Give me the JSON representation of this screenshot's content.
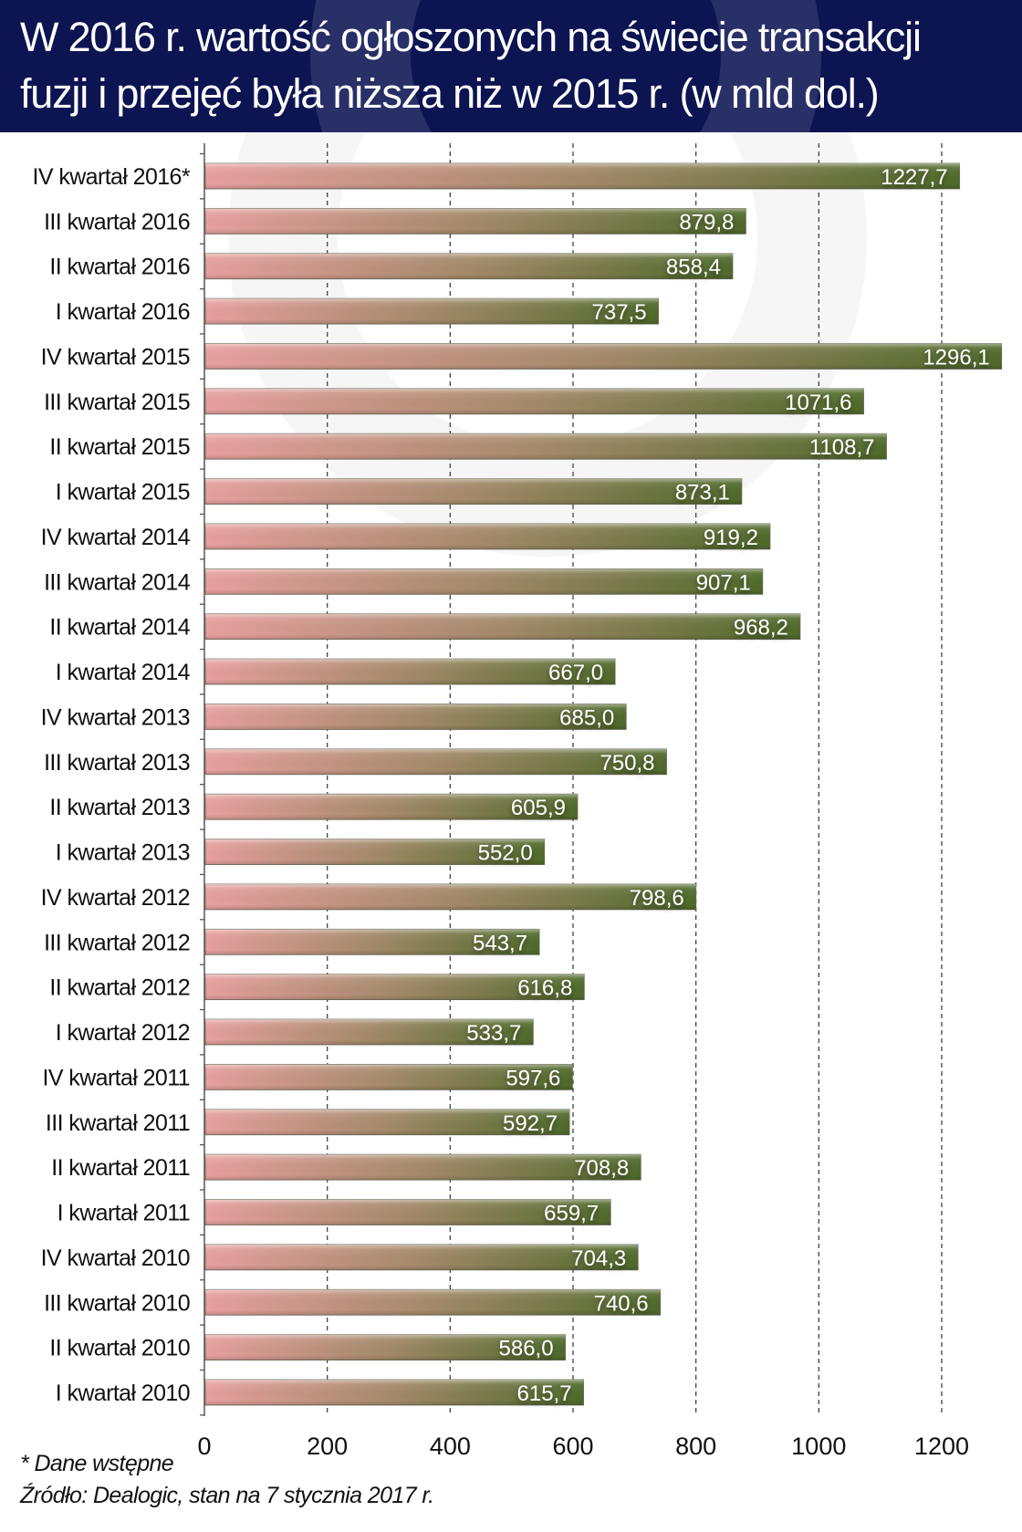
{
  "header": {
    "title_line1": "W 2016 r. wartość ogłoszonych na świecie transakcji",
    "title_line2": "fuzji i przejęć była niższa niż w 2015 r. (w mld dol.)"
  },
  "footer": {
    "note": "* Dane wstępne",
    "source": "Źródło: Dealogic, stan na 7 stycznia 2017 r."
  },
  "colors": {
    "header_bg": "#0c1452",
    "bar_start": "#e8a0a0",
    "bar_mid": "#a48a6a",
    "bar_end": "#4e6a2a",
    "label_text": "#ffffff"
  },
  "chart_data": {
    "type": "bar",
    "orientation": "horizontal",
    "title": "W 2016 r. wartość ogłoszonych na świecie transakcji fuzji i przejęć była niższa niż w 2015 r. (w mld dol.)",
    "xlabel": "",
    "ylabel": "",
    "xlim": [
      0,
      1300
    ],
    "xticks": [
      0,
      200,
      400,
      600,
      800,
      1000,
      1200
    ],
    "xtick_labels": [
      "0",
      "200",
      "400",
      "600",
      "800",
      "1000",
      "1200"
    ],
    "grid": "vertical-dashed",
    "categories": [
      "IV kwartał 2016*",
      "III kwartał 2016",
      "II kwartał 2016",
      "I kwartał 2016",
      "IV kwartał 2015",
      "III kwartał 2015",
      "II kwartał 2015",
      "I kwartał 2015",
      "IV kwartał 2014",
      "III kwartał 2014",
      "II kwartał 2014",
      "I kwartał 2014",
      "IV kwartał 2013",
      "III kwartał 2013",
      "II kwartał 2013",
      "I kwartał 2013",
      "IV kwartał 2012",
      "III kwartał 2012",
      "II kwartał 2012",
      "I kwartał 2012",
      "IV kwartał 2011",
      "III kwartał 2011",
      "II kwartał 2011",
      "I kwartał 2011",
      "IV kwartał 2010",
      "III kwartał 2010",
      "II kwartał 2010",
      "I kwartał 2010"
    ],
    "values": [
      1227.7,
      879.8,
      858.4,
      737.5,
      1296.1,
      1071.6,
      1108.7,
      873.1,
      919.2,
      907.1,
      968.2,
      667.0,
      685.0,
      750.8,
      605.9,
      552.0,
      798.6,
      543.7,
      616.8,
      533.7,
      597.6,
      592.7,
      708.8,
      659.7,
      704.3,
      740.6,
      586.0,
      615.7
    ],
    "value_labels": [
      "1227,7",
      "879,8",
      "858,4",
      "737,5",
      "1296,1",
      "1071,6",
      "1108,7",
      "873,1",
      "919,2",
      "907,1",
      "968,2",
      "667,0",
      "685,0",
      "750,8",
      "605,9",
      "552,0",
      "798,6",
      "543,7",
      "616,8",
      "533,7",
      "597,6",
      "592,7",
      "708,8",
      "659,7",
      "704,3",
      "740,6",
      "586,0",
      "615,7"
    ]
  }
}
